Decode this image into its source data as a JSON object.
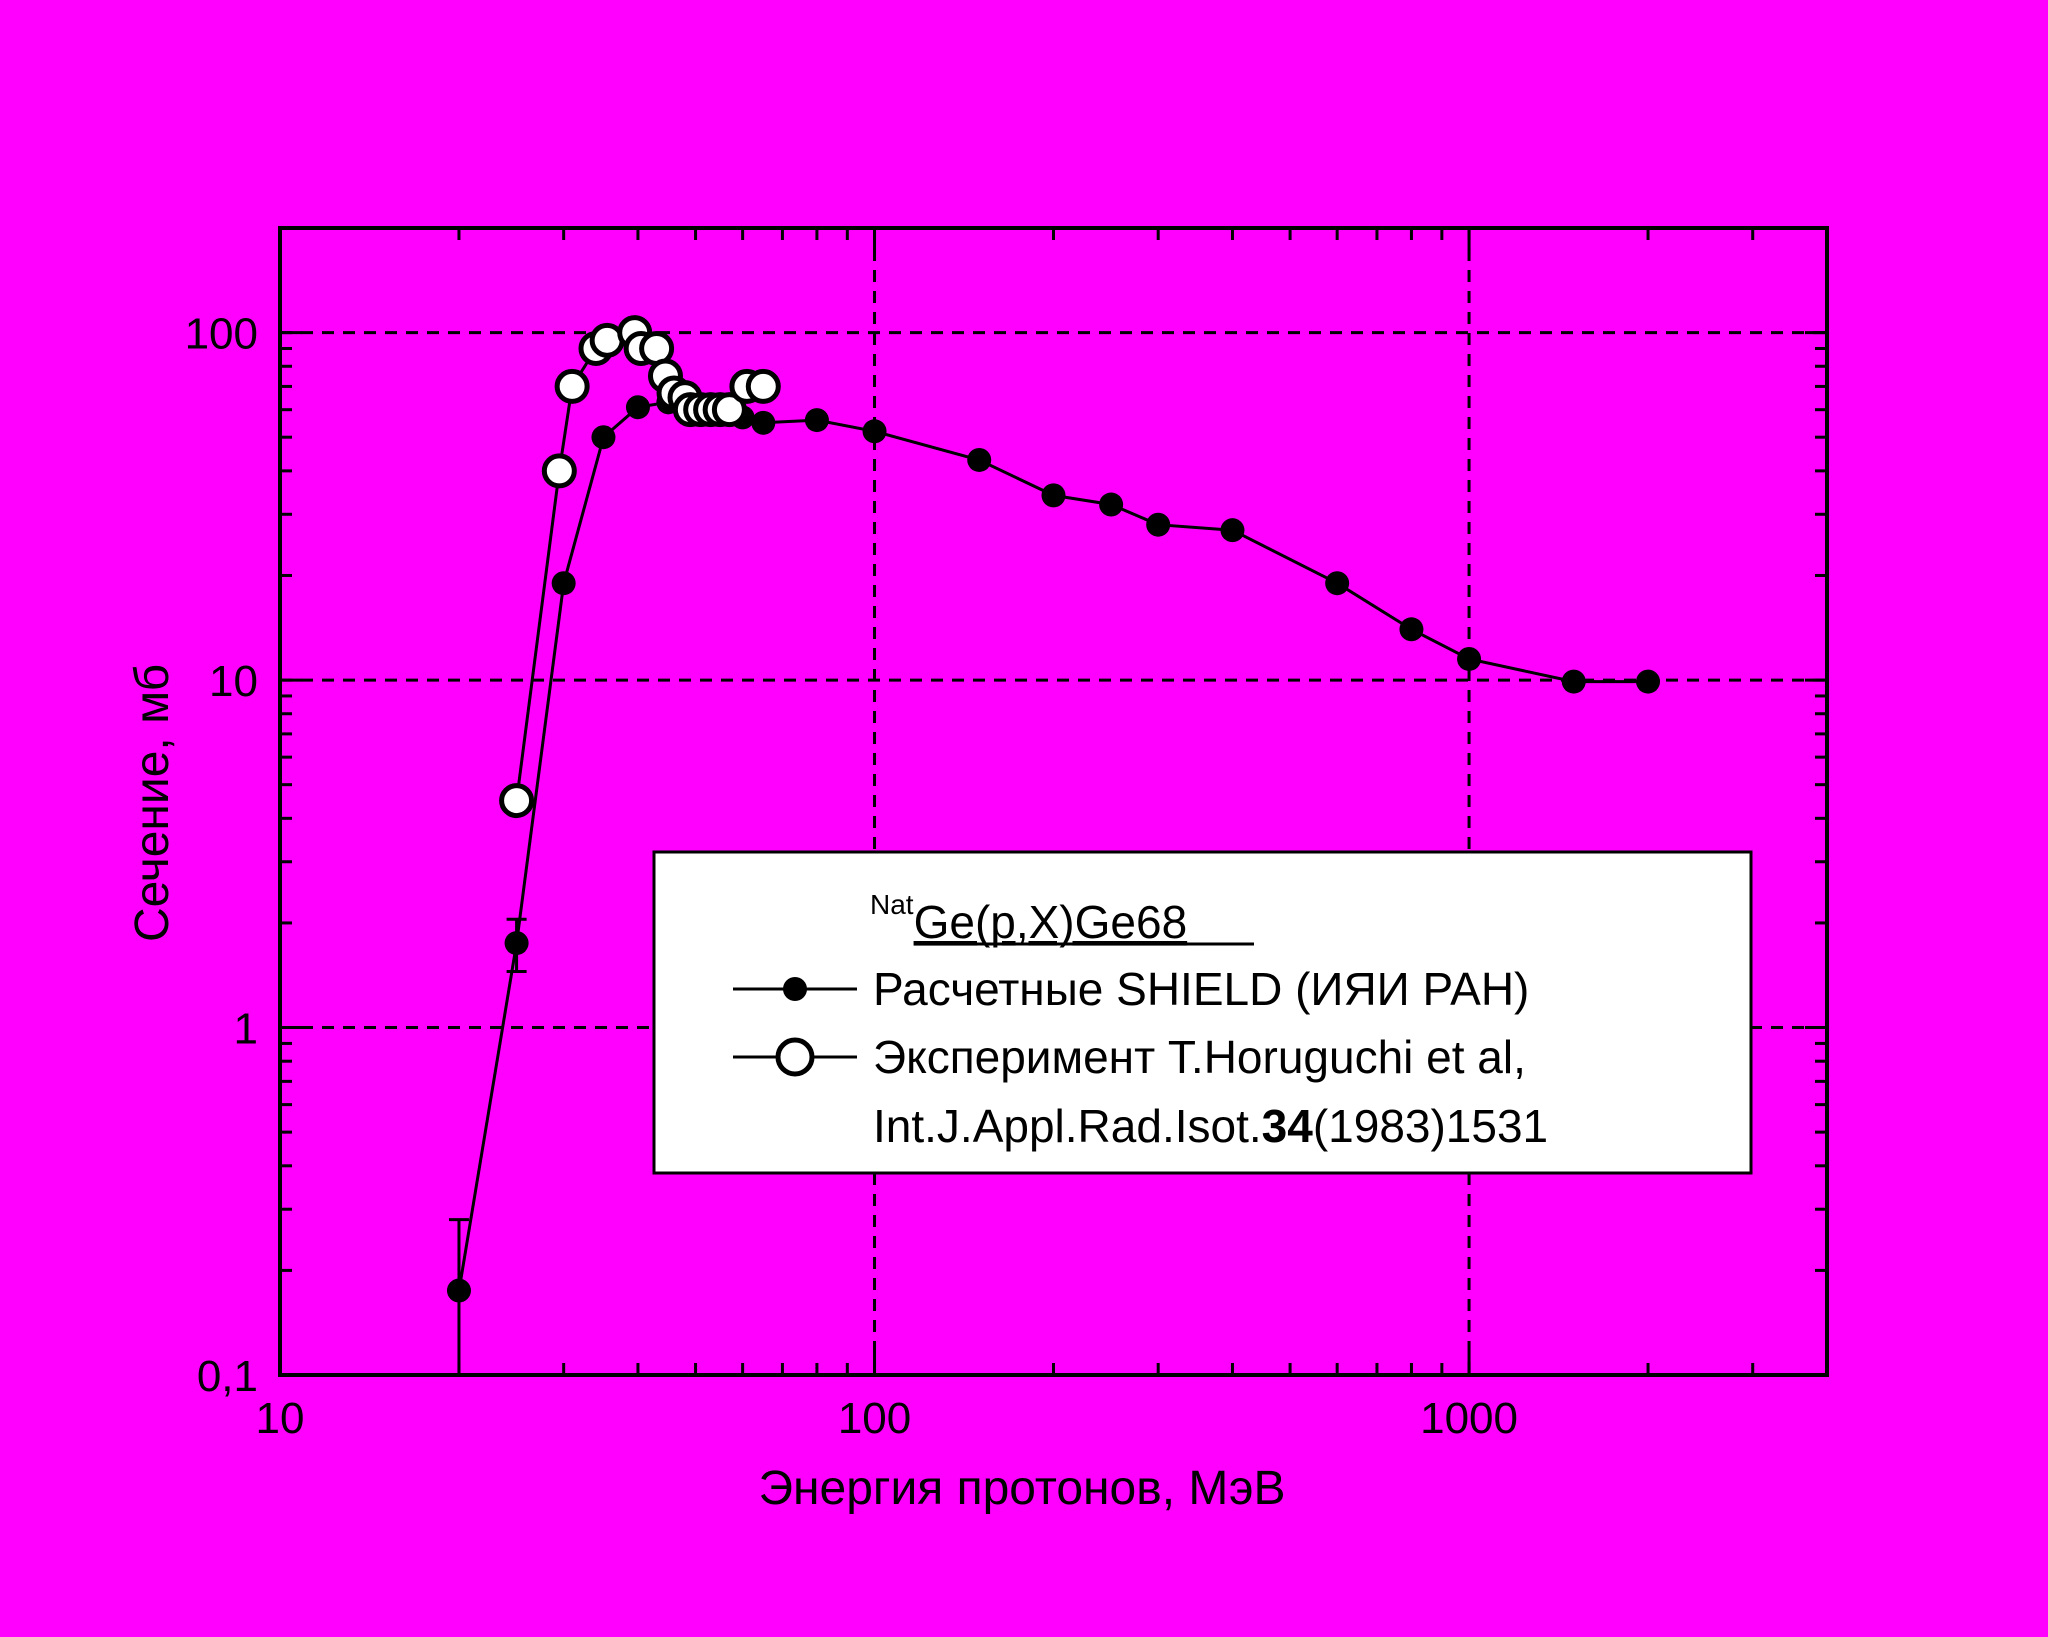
{
  "colors": {
    "background": "#ff00ff",
    "ink": "#000000",
    "open_marker": "#ffffff",
    "legend_bg": "#ffffff"
  },
  "chart_data": {
    "type": "line",
    "xlabel": "Энергия протонов, МэВ",
    "ylabel": "Сечение, мб",
    "x_scale": "log",
    "y_scale": "log",
    "xlim": [
      10,
      4000
    ],
    "ylim": [
      0.1,
      200
    ],
    "x_ticks": [
      {
        "value": 10,
        "label": "10"
      },
      {
        "value": 100,
        "label": "100"
      },
      {
        "value": 1000,
        "label": "1000"
      }
    ],
    "y_ticks": [
      {
        "value": 0.1,
        "label": "0,1"
      },
      {
        "value": 1,
        "label": "1"
      },
      {
        "value": 10,
        "label": "10"
      },
      {
        "value": 100,
        "label": "100"
      }
    ],
    "grid": true,
    "legend_position": "lower-right",
    "legend_title": {
      "sup": "Nat",
      "main": "Ge(p,X)Ge68"
    },
    "series": [
      {
        "name": "Расчетные SHIELD (ИЯИ РАН)",
        "marker": "filled-circle",
        "x": [
          20,
          25,
          30,
          35,
          40,
          45,
          50,
          55,
          60,
          65,
          80,
          100,
          150,
          200,
          250,
          300,
          400,
          600,
          800,
          1000,
          1500,
          2000
        ],
        "y": [
          0.175,
          1.75,
          19,
          50,
          61,
          63,
          60,
          58,
          57,
          55,
          56,
          52,
          43,
          34,
          32,
          28,
          27,
          19,
          14,
          11.5,
          9.9,
          9.9
        ],
        "error_bars": [
          {
            "x": 20,
            "low": 0.1,
            "high": 0.28
          },
          {
            "x": 25,
            "low": 1.45,
            "high": 2.05
          }
        ]
      },
      {
        "name": "Эксперимент T.Horuguchi et al,",
        "name_line2": {
          "pre": "Int.J.Appl.Rad.Isot.",
          "bold": "34",
          "post": "(1983)1531"
        },
        "marker": "open-circle",
        "x": [
          25,
          29.5,
          31,
          34,
          35.5,
          39.5,
          40.5,
          43,
          44.5,
          46,
          48,
          49,
          51,
          53,
          55,
          57,
          61,
          65
        ],
        "y": [
          4.5,
          40,
          70,
          90,
          95,
          100,
          90,
          90,
          75,
          67,
          65,
          60,
          60,
          60,
          60,
          60,
          70,
          70
        ]
      }
    ]
  }
}
